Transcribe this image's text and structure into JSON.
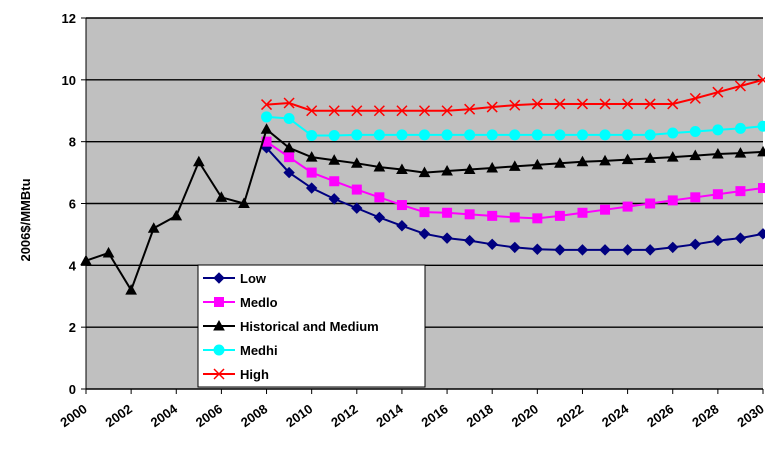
{
  "chart_data": {
    "type": "line",
    "title": "",
    "xlabel": "",
    "ylabel": "2006$/MMBtu",
    "xlim": [
      2000,
      2030
    ],
    "ylim": [
      0,
      12
    ],
    "y_ticks": [
      0,
      2,
      4,
      6,
      8,
      10,
      12
    ],
    "x_ticks": [
      2000,
      2002,
      2004,
      2006,
      2008,
      2010,
      2012,
      2014,
      2016,
      2018,
      2020,
      2022,
      2024,
      2026,
      2028,
      2030
    ],
    "y_tick_labels": [
      "0",
      "2",
      "4",
      "6",
      "8",
      "10",
      "12"
    ],
    "x_tick_labels": [
      "2000",
      "2002",
      "2004",
      "2006",
      "2008",
      "2010",
      "2012",
      "2014",
      "2016",
      "2018",
      "2020",
      "2022",
      "2024",
      "2026",
      "2028",
      "2030"
    ],
    "grid": "horizontal",
    "background": "#c0c0c0",
    "legend_position": "lower-left",
    "series": [
      {
        "name": "Low",
        "color": "#000080",
        "marker": "diamond",
        "x": [
          2008,
          2009,
          2010,
          2011,
          2012,
          2013,
          2014,
          2015,
          2016,
          2017,
          2018,
          2019,
          2020,
          2021,
          2022,
          2023,
          2024,
          2025,
          2026,
          2027,
          2028,
          2029,
          2030
        ],
        "y": [
          7.8,
          7.0,
          6.5,
          6.15,
          5.85,
          5.55,
          5.28,
          5.02,
          4.88,
          4.8,
          4.68,
          4.58,
          4.52,
          4.5,
          4.5,
          4.5,
          4.5,
          4.5,
          4.58,
          4.68,
          4.8,
          4.88,
          5.02
        ]
      },
      {
        "name": "Medlo",
        "color": "#ff00ff",
        "marker": "square",
        "x": [
          2008,
          2009,
          2010,
          2011,
          2012,
          2013,
          2014,
          2015,
          2016,
          2017,
          2018,
          2019,
          2020,
          2021,
          2022,
          2023,
          2024,
          2025,
          2026,
          2027,
          2028,
          2029,
          2030
        ],
        "y": [
          8.0,
          7.5,
          7.0,
          6.72,
          6.45,
          6.2,
          5.95,
          5.72,
          5.7,
          5.65,
          5.6,
          5.55,
          5.52,
          5.6,
          5.7,
          5.8,
          5.9,
          6.0,
          6.1,
          6.2,
          6.3,
          6.4,
          6.5
        ]
      },
      {
        "name": "Historical and Medium",
        "color": "#000000",
        "marker": "triangle",
        "x": [
          2000,
          2001,
          2002,
          2003,
          2004,
          2005,
          2006,
          2007,
          2008,
          2009,
          2010,
          2011,
          2012,
          2013,
          2014,
          2015,
          2016,
          2017,
          2018,
          2019,
          2020,
          2021,
          2022,
          2023,
          2024,
          2025,
          2026,
          2027,
          2028,
          2029,
          2030
        ],
        "y": [
          4.15,
          4.4,
          3.2,
          5.2,
          5.6,
          7.35,
          6.2,
          6.0,
          8.4,
          7.8,
          7.5,
          7.4,
          7.3,
          7.18,
          7.1,
          7.0,
          7.05,
          7.1,
          7.15,
          7.2,
          7.25,
          7.3,
          7.35,
          7.38,
          7.42,
          7.46,
          7.5,
          7.55,
          7.6,
          7.63,
          7.67
        ]
      },
      {
        "name": "Medhi",
        "color": "#00ffff",
        "marker": "circle",
        "x": [
          2008,
          2009,
          2010,
          2011,
          2012,
          2013,
          2014,
          2015,
          2016,
          2017,
          2018,
          2019,
          2020,
          2021,
          2022,
          2023,
          2024,
          2025,
          2026,
          2027,
          2028,
          2029,
          2030
        ],
        "y": [
          8.8,
          8.75,
          8.2,
          8.2,
          8.22,
          8.22,
          8.22,
          8.22,
          8.22,
          8.22,
          8.22,
          8.22,
          8.22,
          8.22,
          8.22,
          8.22,
          8.22,
          8.22,
          8.28,
          8.33,
          8.38,
          8.43,
          8.5
        ]
      },
      {
        "name": "High",
        "color": "#ff0000",
        "marker": "x",
        "x": [
          2008,
          2009,
          2010,
          2011,
          2012,
          2013,
          2014,
          2015,
          2016,
          2017,
          2018,
          2019,
          2020,
          2021,
          2022,
          2023,
          2024,
          2025,
          2026,
          2027,
          2028,
          2029,
          2030
        ],
        "y": [
          9.2,
          9.25,
          9.0,
          9.0,
          9.0,
          9.0,
          9.0,
          9.0,
          9.0,
          9.05,
          9.12,
          9.18,
          9.22,
          9.22,
          9.22,
          9.22,
          9.22,
          9.22,
          9.22,
          9.4,
          9.6,
          9.8,
          10.0
        ]
      }
    ]
  }
}
